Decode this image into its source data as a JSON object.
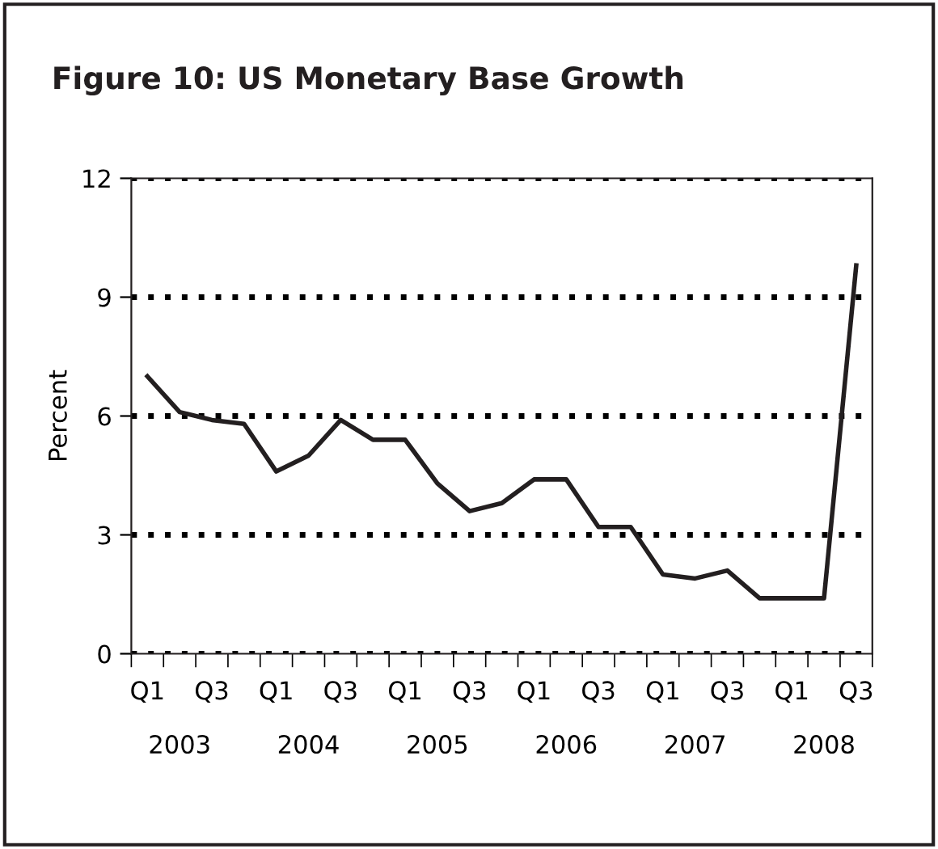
{
  "chart_data": {
    "type": "line",
    "title": "Figure 10: US Monetary Base Growth",
    "ylabel": "Percent",
    "categories": [
      "Q1",
      null,
      "Q3",
      null,
      "Q1",
      null,
      "Q3",
      null,
      "Q1",
      null,
      "Q3",
      null,
      "Q1",
      null,
      "Q3",
      null,
      "Q1",
      null,
      "Q3",
      null,
      "Q1",
      null,
      "Q3"
    ],
    "series": [
      {
        "color": "#231f20",
        "values": [
          7.0,
          6.1,
          5.9,
          5.8,
          4.6,
          5.0,
          5.9,
          5.4,
          5.4,
          4.3,
          3.6,
          3.8,
          4.4,
          4.4,
          3.2,
          3.2,
          2.0,
          1.9,
          2.1,
          1.4,
          1.4,
          1.4,
          9.8
        ]
      }
    ],
    "annotations": [
      "2003",
      "2004",
      "2005",
      "2006",
      "2007",
      "2008"
    ],
    "ylim": [
      0,
      12
    ],
    "yticks": [
      0,
      3,
      6,
      9,
      12
    ],
    "grid": "y",
    "line_style": "solid",
    "marker": "none",
    "legend": false
  }
}
